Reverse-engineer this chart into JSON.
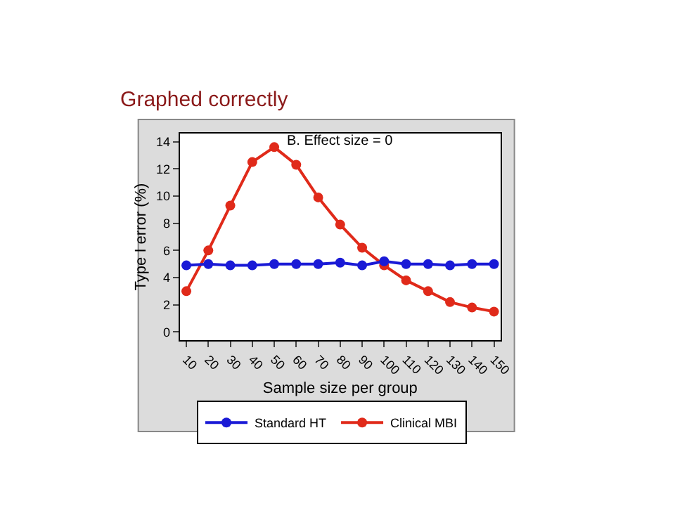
{
  "chart_data": {
    "type": "line",
    "title": "Graphed correctly",
    "xlabel": "Sample size per group",
    "ylabel": "Type I error (%)",
    "annotations": [
      "B. Effect size = 0"
    ],
    "x": [
      10,
      20,
      30,
      40,
      50,
      60,
      70,
      80,
      90,
      100,
      110,
      120,
      130,
      140,
      150
    ],
    "series": [
      {
        "name": "Standard HT",
        "color": "#1a1ad6",
        "values": [
          4.9,
          5.0,
          4.9,
          4.9,
          5.0,
          5.0,
          5.0,
          5.1,
          4.9,
          5.2,
          5.0,
          5.0,
          4.9,
          5.0,
          5.0
        ]
      },
      {
        "name": "Clinical MBI",
        "color": "#e02a1a",
        "values": [
          3.0,
          6.0,
          9.3,
          12.5,
          13.6,
          12.3,
          9.9,
          7.9,
          6.2,
          4.9,
          3.8,
          3.0,
          2.2,
          1.8,
          1.5
        ]
      }
    ],
    "xlim": [
      7,
      153
    ],
    "xticks": [
      10,
      20,
      30,
      40,
      50,
      60,
      70,
      80,
      90,
      100,
      110,
      120,
      130,
      140,
      150
    ],
    "ylim": [
      -0.6,
      14.6
    ],
    "yticks": [
      0,
      2,
      4,
      6,
      8,
      10,
      12,
      14
    ],
    "legend": "bottom",
    "marker": "circle",
    "line_style": "solid"
  }
}
